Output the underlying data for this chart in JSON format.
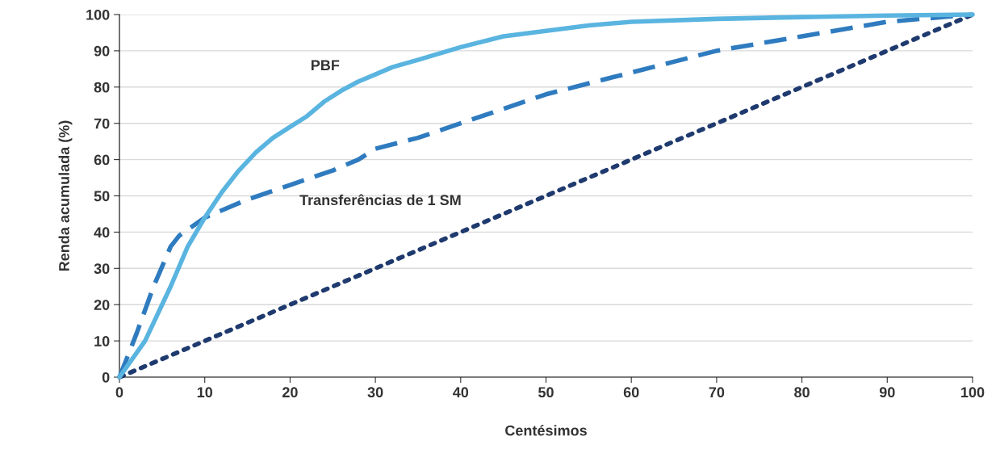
{
  "chart_data": {
    "type": "line",
    "xlabel": "Centésimos",
    "ylabel": "Renda acumulada (%)",
    "xlim": [
      0,
      100
    ],
    "ylim": [
      0,
      100
    ],
    "xticks": [
      0,
      10,
      20,
      30,
      40,
      50,
      60,
      70,
      80,
      90,
      100
    ],
    "yticks": [
      0,
      10,
      20,
      30,
      40,
      50,
      60,
      70,
      80,
      90,
      100
    ],
    "grid": "y",
    "series": [
      {
        "color": "#1f3a6e",
        "line_style": "dotted",
        "x": [
          0,
          100
        ],
        "values": [
          0,
          100
        ]
      },
      {
        "name": "Transferências de 1 SM",
        "color": "#2f7bbf",
        "line_style": "dashed",
        "x": [
          0,
          2,
          4,
          6,
          7,
          10,
          15,
          20,
          25,
          28,
          30,
          35,
          40,
          45,
          50,
          55,
          60,
          65,
          70,
          75,
          80,
          85,
          90,
          95,
          100
        ],
        "values": [
          0,
          12,
          25,
          36,
          39,
          44,
          49,
          53,
          57,
          60,
          63,
          66,
          70,
          74,
          78,
          81,
          84,
          87,
          90,
          92,
          94,
          96,
          98,
          99,
          100
        ]
      },
      {
        "name": "PBF",
        "color": "#5ab4e0",
        "line_style": "solid",
        "x": [
          0,
          3,
          6,
          8,
          10,
          12,
          14,
          16,
          18,
          20,
          22,
          24,
          26,
          28,
          30,
          32,
          35,
          40,
          45,
          50,
          55,
          60,
          70,
          80,
          90,
          100
        ],
        "values": [
          0,
          10,
          25,
          36,
          44,
          51,
          57,
          62,
          66,
          69,
          72,
          76,
          79,
          81.5,
          83.5,
          85.5,
          87.5,
          91,
          94,
          95.5,
          97,
          98,
          98.8,
          99.3,
          99.7,
          100
        ]
      }
    ]
  }
}
